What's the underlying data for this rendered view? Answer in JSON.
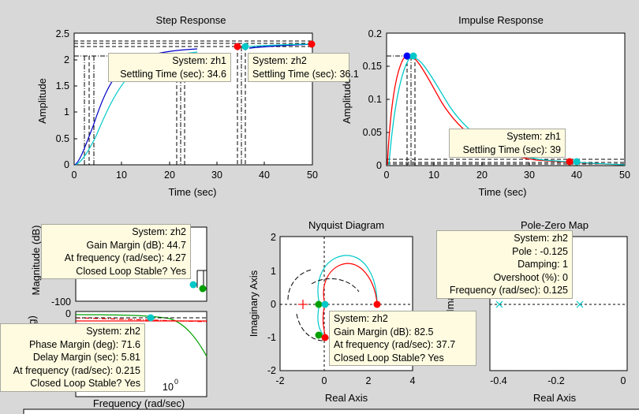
{
  "step": {
    "title": "Step Response",
    "xlabel": "Time (sec)",
    "ylabel": "Amplitude",
    "xticks": [
      "0",
      "10",
      "20",
      "30",
      "40",
      "50"
    ],
    "yticks": [
      "0",
      "0.5",
      "1",
      "1.5",
      "2",
      "2.5"
    ],
    "tip1": {
      "system": "System: zh1",
      "value": "Settling Time (sec): 34.6"
    },
    "tip2": {
      "system": "System: zh2",
      "value": "Settling Time (sec): 36.1"
    }
  },
  "impulse": {
    "title": "Impulse Response",
    "xlabel": "Time (sec)",
    "ylabel": "Amplitude",
    "xticks": [
      "0",
      "10",
      "20",
      "30",
      "40",
      "50"
    ],
    "yticks": [
      "0",
      "0.05",
      "0.1",
      "0.15",
      "0.2"
    ],
    "tip": {
      "system": "System: zh1",
      "value": "Settling Time (sec): 39"
    }
  },
  "bode": {
    "mag_ylabel": "Magnitude (dB)",
    "phase_ylabel": "g)",
    "mag_tick": "-100",
    "phase_tick": "0",
    "xlabel": "Frequency  (rad/sec)",
    "xtick": "10",
    "xtick_exp": "0",
    "tip_gain": [
      "System: zh2",
      "Gain Margin (dB): 44.7",
      "At frequency (rad/sec): 4.27",
      "Closed Loop Stable? Yes"
    ],
    "tip_phase": [
      "System: zh2",
      "Phase Margin (deg): 71.6",
      "Delay Margin (sec): 5.81",
      "At frequency (rad/sec): 0.215",
      "Closed Loop Stable? Yes"
    ]
  },
  "nyquist": {
    "title": "Nyquist Diagram",
    "xlabel": "Real Axis",
    "ylabel": "Imaginary Axis",
    "xticks": [
      "-2",
      "0",
      "2",
      "4"
    ],
    "yticks": [
      "2",
      "1",
      "0",
      "-1",
      "-2"
    ],
    "tip": [
      "System: zh2",
      "Gain Margin (dB): 82.5",
      "At frequency (rad/sec): 37.7",
      "Closed Loop Stable? Yes"
    ]
  },
  "pzmap": {
    "title": "Pole-Zero Map",
    "xlabel": "Real Axis",
    "ylabel": "Ima",
    "xticks": [
      "-0.4",
      "-0.2",
      "0"
    ],
    "tip": [
      "System: zh2",
      "Pole : -0.125",
      "Damping: 1",
      "Overshoot (%): 0",
      "Frequency (rad/sec): 0.125"
    ]
  },
  "colors": {
    "zh1": "#ff0000",
    "zh2": "#00c8c8",
    "zh3": "#0000c8",
    "zh4": "#00a000",
    "marker_blue": "#0000ff",
    "tip_bg": "#fefbe0"
  }
}
